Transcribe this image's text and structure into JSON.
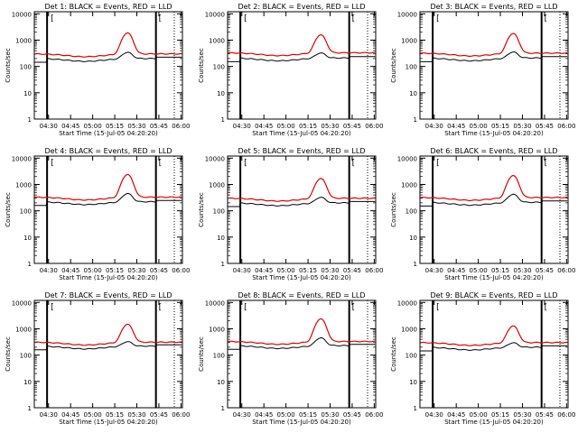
{
  "chart_data": {
    "type": "line",
    "grid": false,
    "legend": "none",
    "colors": {
      "events": "#000000",
      "lld": "#dd0000",
      "axes": "#000000"
    },
    "x_tick_labels": [
      "04:30",
      "04:45",
      "05:00",
      "05:15",
      "05:30",
      "05:45",
      "06:00"
    ],
    "x_ticks_min": [
      30,
      45,
      60,
      75,
      90,
      105,
      120
    ],
    "xlim_min": [
      20.33,
      121
    ],
    "y_scale": "log",
    "ylim": [
      1,
      12000
    ],
    "y_tick_labels": [
      "1",
      "10",
      "100",
      "1000",
      "10000"
    ],
    "y_ticks": [
      1,
      10,
      100,
      1000,
      10000
    ],
    "xlabel": "Start Time (15-Jul-05 04:20:20)",
    "ylabel": "Counts/sec",
    "vertical_lines_min": [
      29,
      103
    ],
    "bracket_labels": [
      "[",
      "["
    ],
    "panels": [
      {
        "title": "Det 1: BLACK = Events, RED = LLD",
        "lld_base": 300,
        "ev_base": 200,
        "lld_peak": 1900,
        "ev_peak": 350
      },
      {
        "title": "Det 2: BLACK = Events, RED = LLD",
        "lld_base": 330,
        "ev_base": 210,
        "lld_peak": 1600,
        "ev_peak": 330
      },
      {
        "title": "Det 3: BLACK = Events, RED = LLD",
        "lld_base": 320,
        "ev_base": 210,
        "lld_peak": 1800,
        "ev_peak": 360
      },
      {
        "title": "Det 4: BLACK = Events, RED = LLD",
        "lld_base": 330,
        "ev_base": 220,
        "lld_peak": 2400,
        "ev_peak": 460
      },
      {
        "title": "Det 5: BLACK = Events, RED = LLD",
        "lld_base": 300,
        "ev_base": 200,
        "lld_peak": 1700,
        "ev_peak": 330
      },
      {
        "title": "Det 6: BLACK = Events, RED = LLD",
        "lld_base": 320,
        "ev_base": 210,
        "lld_peak": 2200,
        "ev_peak": 430
      },
      {
        "title": "Det 7: BLACK = Events, RED = LLD",
        "lld_base": 310,
        "ev_base": 220,
        "lld_peak": 1500,
        "ev_peak": 330
      },
      {
        "title": "Det 8: BLACK = Events, RED = LLD",
        "lld_base": 330,
        "ev_base": 230,
        "lld_peak": 2400,
        "ev_peak": 460
      },
      {
        "title": "Det 9: BLACK = Events, RED = LLD",
        "lld_base": 300,
        "ev_base": 200,
        "lld_peak": 1300,
        "ev_peak": 300
      }
    ]
  }
}
